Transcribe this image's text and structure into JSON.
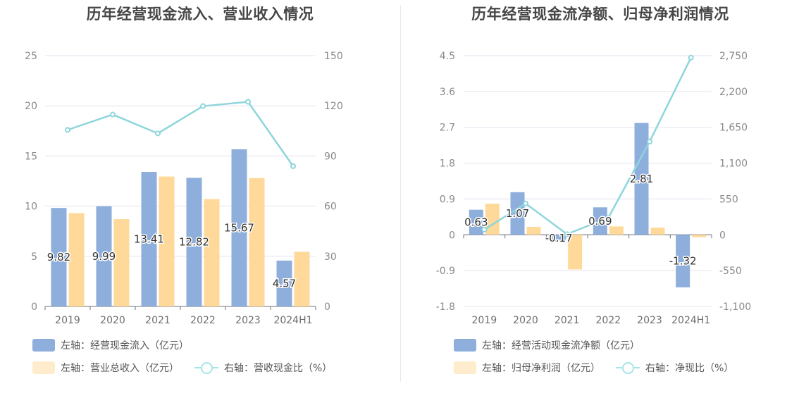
{
  "colors": {
    "bar_a": "#8eaedc",
    "bar_b": "#fed999",
    "line": "#8dd6dc",
    "grid": "#e3e3ef",
    "axis_text": "#8a8a8a"
  },
  "chart_data": [
    {
      "type": "bar",
      "title": "历年经营现金流入、营业收入情况",
      "categories": [
        "2019",
        "2020",
        "2021",
        "2022",
        "2023",
        "2024H1"
      ],
      "left_axis": {
        "min": 0,
        "max": 25,
        "ticks": [
          "0",
          "5",
          "10",
          "15",
          "20",
          "25"
        ]
      },
      "right_axis": {
        "min": 0,
        "max": 150,
        "ticks": [
          "0",
          "30",
          "60",
          "90",
          "120",
          "150"
        ]
      },
      "series": [
        {
          "name": "左轴：经营现金流入（亿元）",
          "kind": "bar",
          "axis": "left",
          "values": [
            9.82,
            9.99,
            13.41,
            12.82,
            15.67,
            4.57
          ],
          "labels": [
            "9.82",
            "9.99",
            "13.41",
            "12.82",
            "15.67",
            "4.57"
          ]
        },
        {
          "name": "左轴：营业总收入（亿元）",
          "kind": "bar",
          "axis": "left",
          "values": [
            9.3,
            8.7,
            12.95,
            10.7,
            12.8,
            5.45
          ]
        },
        {
          "name": "右轴：营收现金比（%）",
          "kind": "line",
          "axis": "right",
          "values": [
            105.6,
            114.8,
            103.5,
            119.8,
            122.4,
            83.9
          ]
        }
      ]
    },
    {
      "type": "bar",
      "title": "历年经营现金流净额、归母净利润情况",
      "categories": [
        "2019",
        "2020",
        "2021",
        "2022",
        "2023",
        "2024H1"
      ],
      "left_axis": {
        "min": -1.8,
        "max": 4.5,
        "ticks": [
          "-1.8",
          "-0.9",
          "0",
          "0.9",
          "1.8",
          "2.7",
          "3.6",
          "4.5"
        ]
      },
      "right_axis": {
        "min": -1100,
        "max": 2750,
        "ticks": [
          "-1,100",
          "-550",
          "0",
          "550",
          "1,100",
          "1,650",
          "2,200",
          "2,750"
        ]
      },
      "series": [
        {
          "name": "左轴：经营活动现金流净额（亿元）",
          "kind": "bar",
          "axis": "left",
          "values": [
            0.63,
            1.07,
            -0.17,
            0.69,
            2.81,
            -1.32
          ],
          "labels": [
            "0.63",
            "1.07",
            "-0.17",
            "0.69",
            "2.81",
            "-1.32"
          ]
        },
        {
          "name": "左轴：归母净利润（亿元）",
          "kind": "bar",
          "axis": "left",
          "values": [
            0.78,
            0.2,
            -0.87,
            0.21,
            0.18,
            -0.06
          ]
        },
        {
          "name": "右轴：净现比（%）",
          "kind": "line",
          "axis": "right",
          "values": [
            80,
            480,
            10,
            260,
            1430,
            2720
          ]
        }
      ]
    }
  ]
}
